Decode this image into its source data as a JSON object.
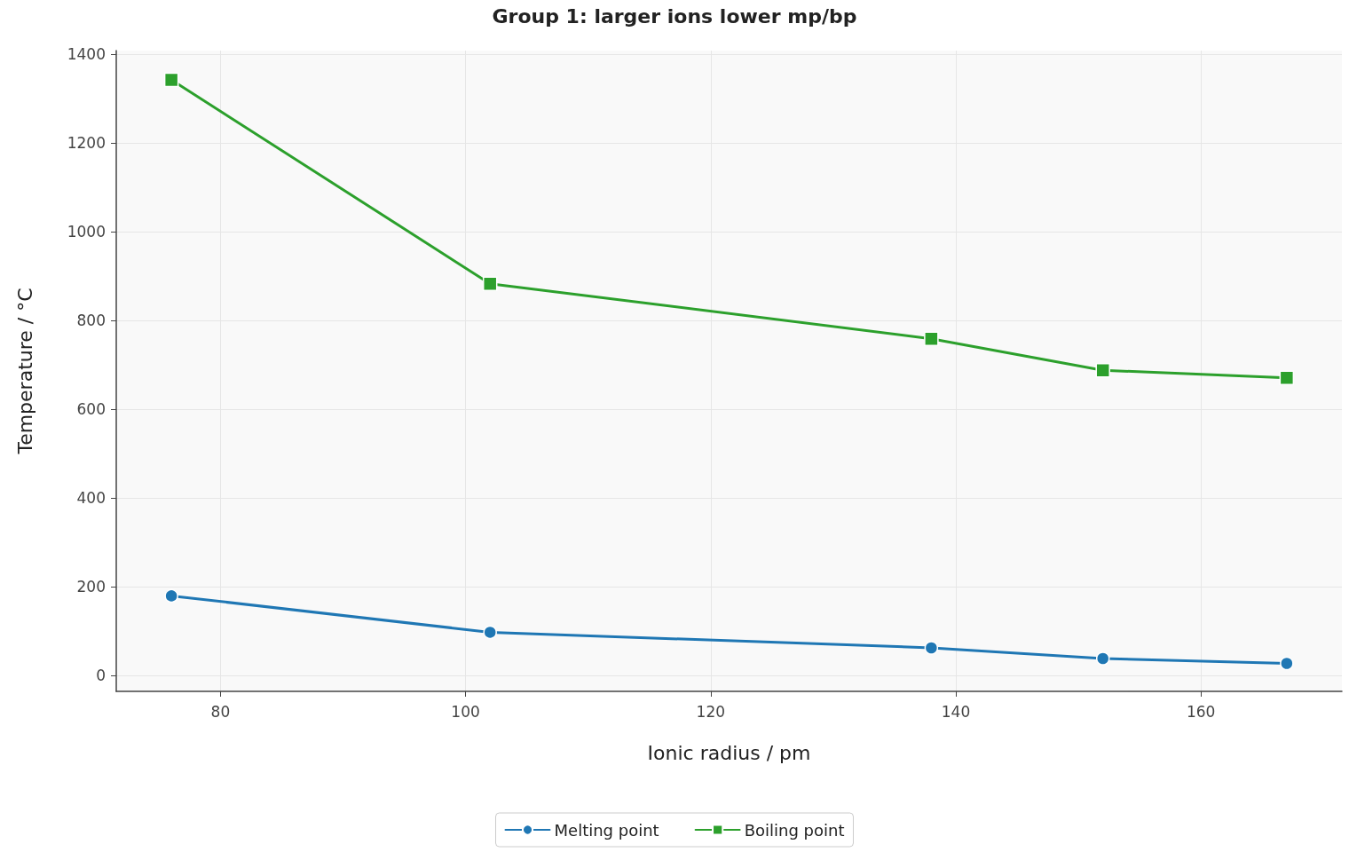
{
  "chart_data": {
    "type": "line",
    "title": "Group 1: larger ions lower mp/bp",
    "xlabel": "Ionic radius / pm",
    "ylabel": "Temperature / °C",
    "x": [
      76,
      102,
      138,
      152,
      167
    ],
    "series": [
      {
        "name": "Melting point",
        "color": "#1f77b4",
        "marker": "circle",
        "values": [
          180,
          98,
          63,
          39,
          28
        ]
      },
      {
        "name": "Boiling point",
        "color": "#2ca02c",
        "marker": "square",
        "values": [
          1342,
          883,
          759,
          688,
          671
        ]
      }
    ],
    "xlim": [
      71.5,
      171.5
    ],
    "xticks": [
      80,
      100,
      120,
      140,
      160
    ],
    "ylim": [
      -35,
      1408
    ],
    "yticks": [
      0,
      200,
      400,
      600,
      800,
      1000,
      1200,
      1400
    ],
    "grid": true,
    "legend": "bottom",
    "line_style": "solid"
  }
}
